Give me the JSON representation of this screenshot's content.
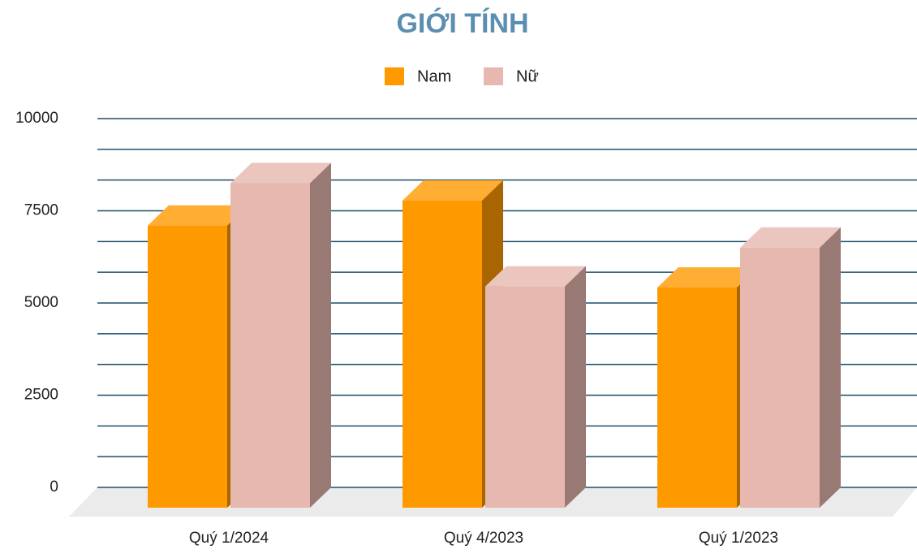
{
  "chart_data": {
    "type": "bar3d",
    "title": "GIỚI TÍNH",
    "categories": [
      "Quý 1/2024",
      "Quý 4/2023",
      "Quý 1/2023"
    ],
    "series": [
      {
        "name": "Nam",
        "color": "#ff9900",
        "values": [
          7650,
          8330,
          5970
        ]
      },
      {
        "name": "Nữ",
        "color": "#e6b8af",
        "values": [
          8800,
          6000,
          7050
        ]
      }
    ],
    "ylim": [
      0,
      10000
    ],
    "yticks": [
      0,
      2500,
      5000,
      7500,
      10000
    ],
    "minor_yticks": [
      833.33,
      1666.67,
      3333.33,
      4166.67,
      5833.33,
      6666.67,
      8333.33,
      9166.67
    ],
    "grid": true,
    "legend": "top"
  }
}
